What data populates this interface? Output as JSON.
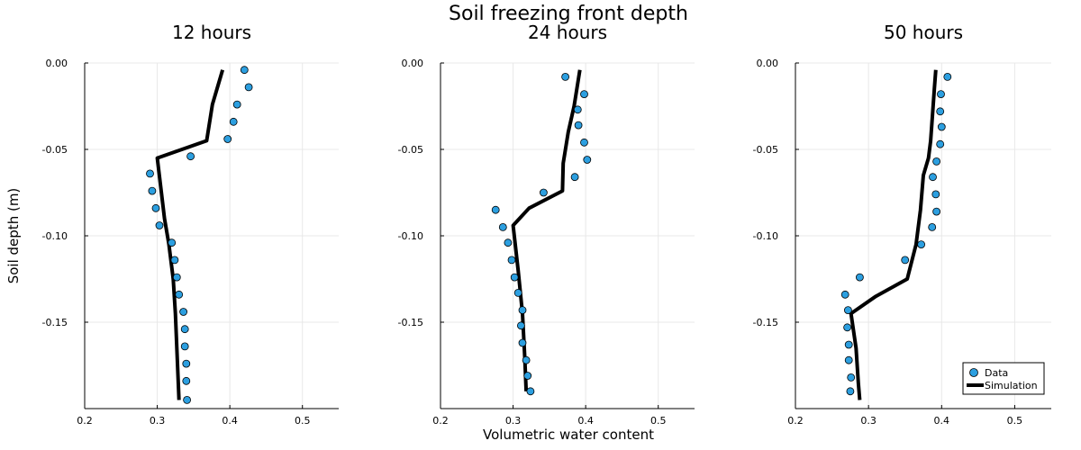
{
  "chart_data": {
    "type": "scatter+line",
    "title": "Soil freezing front depth",
    "xlabel": "Volumetric water content",
    "ylabel": "Soil depth (m)",
    "xlim": [
      0.2,
      0.55
    ],
    "ylim": [
      -0.2,
      0.0
    ],
    "xticks": [
      "0.2",
      "0.3",
      "0.4",
      "0.5"
    ],
    "yticks": [
      "0.00",
      "-0.05",
      "-0.10",
      "-0.15"
    ],
    "grid": true,
    "legend": {
      "placement": "bottom-right",
      "data_label": "Data",
      "sim_label": "Simulation"
    },
    "colors": {
      "data": "#2c9fe0",
      "simulation": "#000000"
    },
    "panels": [
      {
        "title": "12 hours",
        "data": [
          [
            0.42,
            -0.004
          ],
          [
            0.426,
            -0.014
          ],
          [
            0.41,
            -0.024
          ],
          [
            0.405,
            -0.034
          ],
          [
            0.397,
            -0.044
          ],
          [
            0.346,
            -0.054
          ],
          [
            0.29,
            -0.064
          ],
          [
            0.293,
            -0.074
          ],
          [
            0.298,
            -0.084
          ],
          [
            0.303,
            -0.094
          ],
          [
            0.32,
            -0.104
          ],
          [
            0.324,
            -0.114
          ],
          [
            0.327,
            -0.124
          ],
          [
            0.33,
            -0.134
          ],
          [
            0.336,
            -0.144
          ],
          [
            0.338,
            -0.154
          ],
          [
            0.338,
            -0.164
          ],
          [
            0.34,
            -0.174
          ],
          [
            0.34,
            -0.184
          ],
          [
            0.341,
            -0.195
          ]
        ],
        "simulation": [
          [
            0.39,
            -0.004
          ],
          [
            0.376,
            -0.024
          ],
          [
            0.368,
            -0.045
          ],
          [
            0.3,
            -0.055
          ],
          [
            0.31,
            -0.09
          ],
          [
            0.316,
            -0.105
          ],
          [
            0.322,
            -0.125
          ],
          [
            0.325,
            -0.145
          ],
          [
            0.327,
            -0.165
          ],
          [
            0.329,
            -0.185
          ],
          [
            0.33,
            -0.195
          ]
        ]
      },
      {
        "title": "24 hours",
        "data": [
          [
            0.372,
            -0.008
          ],
          [
            0.398,
            -0.018
          ],
          [
            0.389,
            -0.027
          ],
          [
            0.39,
            -0.036
          ],
          [
            0.398,
            -0.046
          ],
          [
            0.402,
            -0.056
          ],
          [
            0.385,
            -0.066
          ],
          [
            0.342,
            -0.075
          ],
          [
            0.276,
            -0.085
          ],
          [
            0.286,
            -0.095
          ],
          [
            0.293,
            -0.104
          ],
          [
            0.298,
            -0.114
          ],
          [
            0.302,
            -0.124
          ],
          [
            0.307,
            -0.133
          ],
          [
            0.313,
            -0.143
          ],
          [
            0.311,
            -0.152
          ],
          [
            0.313,
            -0.162
          ],
          [
            0.318,
            -0.172
          ],
          [
            0.32,
            -0.181
          ],
          [
            0.324,
            -0.19
          ]
        ],
        "simulation": [
          [
            0.392,
            -0.004
          ],
          [
            0.384,
            -0.025
          ],
          [
            0.376,
            -0.04
          ],
          [
            0.369,
            -0.058
          ],
          [
            0.368,
            -0.074
          ],
          [
            0.322,
            -0.084
          ],
          [
            0.3,
            -0.094
          ],
          [
            0.307,
            -0.12
          ],
          [
            0.313,
            -0.145
          ],
          [
            0.316,
            -0.17
          ],
          [
            0.318,
            -0.19
          ]
        ]
      },
      {
        "title": "50 hours",
        "data": [
          [
            0.408,
            -0.008
          ],
          [
            0.399,
            -0.018
          ],
          [
            0.398,
            -0.028
          ],
          [
            0.4,
            -0.037
          ],
          [
            0.398,
            -0.047
          ],
          [
            0.393,
            -0.057
          ],
          [
            0.388,
            -0.066
          ],
          [
            0.392,
            -0.076
          ],
          [
            0.393,
            -0.086
          ],
          [
            0.387,
            -0.095
          ],
          [
            0.372,
            -0.105
          ],
          [
            0.35,
            -0.114
          ],
          [
            0.288,
            -0.124
          ],
          [
            0.268,
            -0.134
          ],
          [
            0.272,
            -0.143
          ],
          [
            0.271,
            -0.153
          ],
          [
            0.273,
            -0.163
          ],
          [
            0.273,
            -0.172
          ],
          [
            0.276,
            -0.182
          ],
          [
            0.275,
            -0.19
          ]
        ],
        "simulation": [
          [
            0.392,
            -0.004
          ],
          [
            0.39,
            -0.015
          ],
          [
            0.385,
            -0.045
          ],
          [
            0.382,
            -0.055
          ],
          [
            0.375,
            -0.065
          ],
          [
            0.371,
            -0.085
          ],
          [
            0.365,
            -0.105
          ],
          [
            0.353,
            -0.125
          ],
          [
            0.31,
            -0.135
          ],
          [
            0.276,
            -0.145
          ],
          [
            0.283,
            -0.165
          ],
          [
            0.286,
            -0.185
          ],
          [
            0.288,
            -0.195
          ]
        ]
      }
    ]
  }
}
